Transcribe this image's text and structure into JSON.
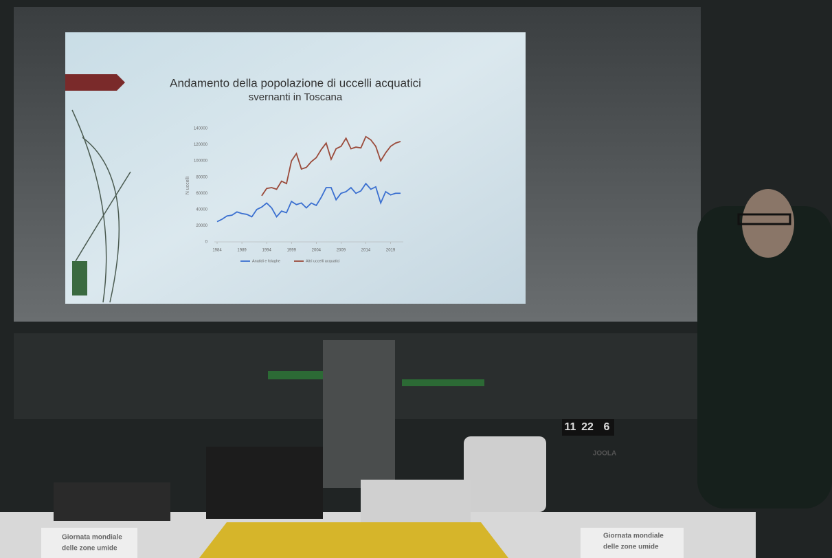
{
  "chart_data": {
    "type": "line",
    "title": [
      "Andamento della popolazione di uccelli acquatici",
      "svernanti in Toscana"
    ],
    "y_label": "N uccelli",
    "x": [
      1984,
      1985,
      1986,
      1987,
      1988,
      1989,
      1990,
      1991,
      1992,
      1993,
      1994,
      1995,
      1996,
      1997,
      1998,
      1999,
      2000,
      2001,
      2002,
      2003,
      2004,
      2005,
      2006,
      2007,
      2008,
      2009,
      2010,
      2011,
      2012,
      2013,
      2014,
      2015,
      2016,
      2017,
      2018,
      2019,
      2020,
      2021
    ],
    "series": [
      {
        "name": "Anatidi e folaghe",
        "color": "#3a6fd0",
        "values": [
          25000,
          28000,
          32000,
          33000,
          37000,
          35000,
          34000,
          31000,
          40000,
          43000,
          48000,
          42000,
          31000,
          38000,
          36000,
          50000,
          46000,
          48000,
          42000,
          48000,
          45000,
          55000,
          67000,
          67000,
          52000,
          60000,
          62000,
          67000,
          60000,
          63000,
          72000,
          65000,
          68000,
          48000,
          62000,
          58000,
          60000,
          60000
        ]
      },
      {
        "name": "Altri uccelli acquatici",
        "color": "#9a4a3a",
        "values": [
          null,
          null,
          null,
          null,
          null,
          null,
          null,
          null,
          null,
          57000,
          66000,
          67000,
          65000,
          75000,
          72000,
          100000,
          109000,
          90000,
          92000,
          99000,
          104000,
          114000,
          122000,
          102000,
          115000,
          118000,
          128000,
          115000,
          117000,
          116000,
          130000,
          126000,
          118000,
          100000,
          110000,
          118000,
          122000,
          124000
        ]
      }
    ],
    "xlim": [
      1984,
      2021
    ],
    "xticks": [
      1984,
      1989,
      1994,
      1999,
      2004,
      2009,
      2014,
      2019
    ],
    "ylim": [
      0,
      140000
    ],
    "yticks": [
      0,
      20000,
      40000,
      60000,
      80000,
      100000,
      120000,
      140000
    ]
  },
  "scoreboard": [
    "11",
    "22",
    "6"
  ],
  "brand": "JOOLA",
  "signs": [
    [
      "Giornata mondiale",
      "delle zone umide"
    ],
    [
      "Giornata mondiale",
      "delle zone umide"
    ]
  ]
}
